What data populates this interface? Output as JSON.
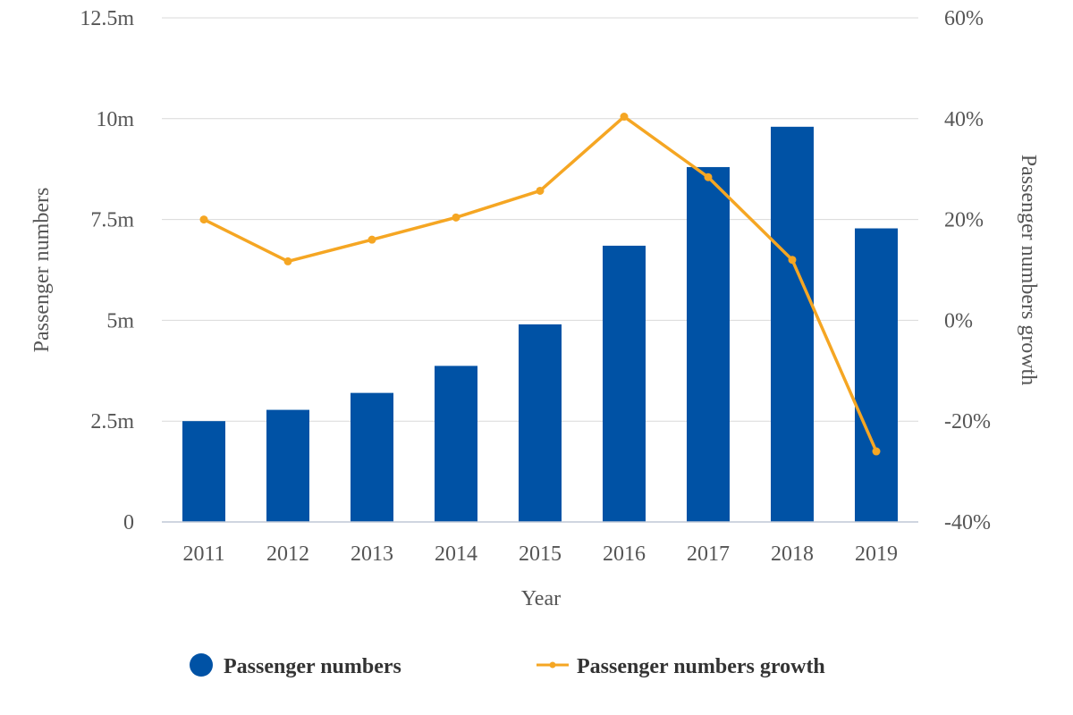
{
  "chart_data": {
    "type": "bar",
    "categories": [
      "2011",
      "2012",
      "2013",
      "2014",
      "2015",
      "2016",
      "2017",
      "2018",
      "2019"
    ],
    "series": [
      {
        "name": "Passenger numbers",
        "type": "bar",
        "axis": "left",
        "color": "#0052A5",
        "values": [
          2.5,
          2.78,
          3.2,
          3.87,
          4.9,
          6.85,
          8.8,
          9.8,
          7.28
        ]
      },
      {
        "name": "Passenger numbers growth",
        "type": "line",
        "axis": "right",
        "color": "#F5A623",
        "values": [
          20,
          11.7,
          16,
          20.4,
          25.7,
          40.4,
          28.4,
          12,
          -26
        ]
      }
    ],
    "xlabel": "Year",
    "ylabel": "Passenger numbers",
    "y2label": "Passenger numbers growth",
    "ylim": [
      0,
      12.5
    ],
    "y2lim": [
      -40,
      60
    ],
    "yticks": [
      {
        "value": 0,
        "label": "0"
      },
      {
        "value": 2.5,
        "label": "2.5m"
      },
      {
        "value": 5,
        "label": "5m"
      },
      {
        "value": 7.5,
        "label": "7.5m"
      },
      {
        "value": 10,
        "label": "10m"
      },
      {
        "value": 12.5,
        "label": "12.5m"
      }
    ],
    "y2ticks": [
      {
        "value": -40,
        "label": "-40%"
      },
      {
        "value": -20,
        "label": "-20%"
      },
      {
        "value": 0,
        "label": "0%"
      },
      {
        "value": 20,
        "label": "20%"
      },
      {
        "value": 40,
        "label": "40%"
      },
      {
        "value": 60,
        "label": "60%"
      }
    ],
    "grid": true,
    "legend": "bottom-center"
  }
}
